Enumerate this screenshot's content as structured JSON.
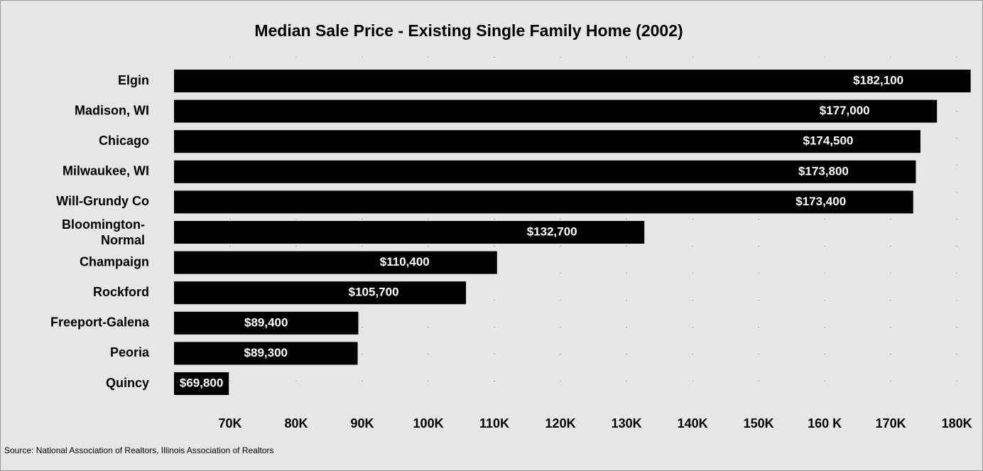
{
  "chart_data": {
    "type": "bar",
    "orientation": "horizontal",
    "title": "Median Sale Price - Existing Single Family Home (2002)",
    "categories": [
      "Elgin",
      "Madison, WI",
      "Chicago",
      "Milwaukee, WI",
      "Will-Grundy Co",
      "Bloomington-Normal",
      "Champaign",
      "Rockford",
      "Freeport-Galena",
      "Peoria",
      "Quincy"
    ],
    "values": [
      182100,
      177000,
      174500,
      173800,
      173400,
      132700,
      110400,
      105700,
      89400,
      89300,
      69800
    ],
    "value_labels": [
      "$182,100",
      "$177,000",
      "$174,500",
      "$173,800",
      "$173,400",
      "$132,700",
      "$110,400",
      "$105,700",
      "$89,400",
      "$89,300",
      "$69,800"
    ],
    "color": "#000000",
    "xlim": [
      61500,
      183000
    ],
    "xticks": [
      {
        "value": 70000,
        "label": "70K"
      },
      {
        "value": 80000,
        "label": "80K"
      },
      {
        "value": 90000,
        "label": "90K"
      },
      {
        "value": 100000,
        "label": "100K"
      },
      {
        "value": 110000,
        "label": "110K"
      },
      {
        "value": 120000,
        "label": "120K"
      },
      {
        "value": 130000,
        "label": "130K"
      },
      {
        "value": 140000,
        "label": "140K"
      },
      {
        "value": 150000,
        "label": "150K"
      },
      {
        "value": 160000,
        "label": "160 K"
      },
      {
        "value": 170000,
        "label": "170K"
      },
      {
        "value": 180000,
        "label": "180K"
      }
    ],
    "grid": true,
    "source": "Source:  National Association of Realtors, Illinois Association of Realtors"
  }
}
